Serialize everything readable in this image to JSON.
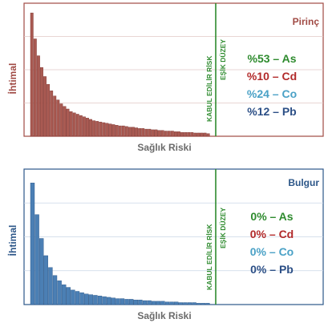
{
  "chart_data": [
    {
      "type": "bar",
      "title": "Pirinç",
      "xlabel": "Sağlık Riski",
      "ylabel": "İhtimal",
      "threshold_label_1": "KABUL EDİLİR RİSK",
      "threshold_label_2": "EŞİK DÜZEY",
      "ylim": [
        0,
        100
      ],
      "grid": true,
      "values": [
        95,
        75,
        62,
        53,
        46,
        40,
        35,
        31,
        28,
        25,
        23,
        21,
        19,
        18,
        17,
        16,
        15,
        14,
        13,
        12,
        11.5,
        11,
        10.5,
        10,
        9.5,
        9,
        8.5,
        8,
        8,
        7.5,
        7,
        7,
        6.5,
        6,
        6,
        5.5,
        5.5,
        5,
        5,
        4.5,
        4.5,
        4,
        4,
        4,
        3.5,
        3.5,
        3,
        3,
        3,
        3,
        2.5,
        2.5,
        2.5,
        2.5,
        2
      ],
      "legend": [
        {
          "label": "%53 – As",
          "color": "#2e8b2e"
        },
        {
          "label": "%10 – Cd",
          "color": "#b22a2a"
        },
        {
          "label": "%24 – Co",
          "color": "#4aa1c6"
        },
        {
          "label": "%12 – Pb",
          "color": "#2c4f86"
        }
      ],
      "colors": {
        "bar": "#a95a52",
        "bar_edge": "#7a2f2a",
        "frame": "#a04a44",
        "title": "#a04a44",
        "threshold": "#2e8b2e",
        "grid": "#e2c9c6"
      }
    },
    {
      "type": "bar",
      "title": "Bulgur",
      "xlabel": "Sağlık Riski",
      "ylabel": "İhtimal",
      "threshold_label_1": "KABUL EDİLİR RİSK",
      "threshold_label_2": "EŞİK DÜZEY",
      "ylim": [
        0,
        100
      ],
      "grid": true,
      "values": [
        92,
        68,
        50,
        37,
        28,
        22,
        18,
        15,
        13,
        11,
        10,
        9,
        8,
        7.5,
        7,
        6.5,
        6,
        5.5,
        5,
        4.5,
        4.5,
        4,
        4,
        3.5,
        3.5,
        3,
        3,
        2.5,
        2.5,
        2.5,
        2,
        2,
        2,
        1.5,
        1.5,
        1.5,
        1.5,
        1,
        1,
        1
      ],
      "legend": [
        {
          "label": "0% – As",
          "color": "#2e8b2e"
        },
        {
          "label": "0% – Cd",
          "color": "#b22a2a"
        },
        {
          "label": "0% – Co",
          "color": "#4aa1c6"
        },
        {
          "label": "0% – Pb",
          "color": "#2c4f86"
        }
      ],
      "colors": {
        "bar": "#4b7fb4",
        "bar_edge": "#2a5687",
        "frame": "#2c5688",
        "title": "#2c5688",
        "threshold": "#2e8b2e",
        "grid": "#c9d6e6"
      }
    }
  ]
}
